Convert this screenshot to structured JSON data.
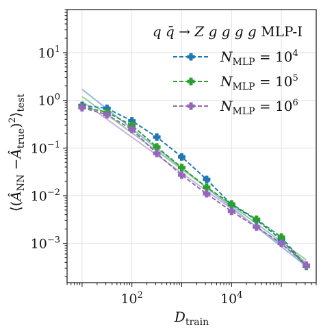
{
  "chart_data": {
    "type": "line",
    "xscale": "log",
    "yscale": "log",
    "xlim": [
      5,
      500000
    ],
    "ylim": [
      0.00015,
      80
    ],
    "grid": true,
    "legend_placement": "top-right",
    "legend_title_prefix": "q q̄ → Z g g g g",
    "legend_title_suffix": "MLP-I",
    "xlabel_main": "D",
    "xlabel_sub": "train",
    "ylabel_text": "⟨(Â_NN − Â_true)²⟩_test",
    "ylabel_parts": {
      "open": "⟨(",
      "a1": "Â",
      "a1_sub": "NN",
      "minus": " −",
      "a2": "Â",
      "a2_sub": "true",
      "close": ")",
      "sq": "2",
      "close2": "⟩",
      "test_sub": "test"
    },
    "x_ticks": [
      {
        "value": 100,
        "base": "10",
        "exp": "2"
      },
      {
        "value": 10000,
        "base": "10",
        "exp": "4"
      }
    ],
    "y_ticks": [
      {
        "value": 10,
        "base": "10",
        "exp": "1"
      },
      {
        "value": 1,
        "base": "10",
        "exp": "0"
      },
      {
        "value": 0.1,
        "base": "10",
        "exp": "−1"
      },
      {
        "value": 0.01,
        "base": "10",
        "exp": "−2"
      },
      {
        "value": 0.001,
        "base": "10",
        "exp": "−3"
      }
    ],
    "x": [
      10,
      31.6,
      100,
      316,
      1000,
      3160,
      10000,
      31600,
      100000,
      316000
    ],
    "series": [
      {
        "legend_prefix": "N",
        "legend_sub": "MLP",
        "legend_mid": " = 10",
        "legend_exp": "4",
        "color": "#1f77b4",
        "values": [
          0.78,
          0.68,
          0.37,
          0.17,
          0.065,
          0.022,
          0.0065,
          0.0031,
          0.0012,
          0.00033
        ],
        "fit": {
          "x": [
            10,
            316000
          ],
          "y": [
            1.7,
            0.00033
          ],
          "color": "#8fbbd9"
        }
      },
      {
        "legend_prefix": "N",
        "legend_sub": "MLP",
        "legend_mid": " = 10",
        "legend_exp": "5",
        "color": "#2ca02c",
        "values": [
          0.74,
          0.56,
          0.3,
          0.105,
          0.039,
          0.015,
          0.0067,
          0.0032,
          0.00135,
          0.00034
        ],
        "fit": {
          "x": [
            10,
            316000
          ],
          "y": [
            1.2,
            0.00045
          ],
          "color": "#96cf96"
        }
      },
      {
        "legend_prefix": "N",
        "legend_sub": "MLP",
        "legend_mid": " = 10",
        "legend_exp": "6",
        "color": "#9467bd",
        "values": [
          0.7,
          0.5,
          0.245,
          0.077,
          0.027,
          0.011,
          0.0047,
          0.0022,
          0.001,
          0.00035
        ],
        "fit": {
          "x": [
            10,
            316000
          ],
          "y": [
            0.95,
            0.0004
          ],
          "color": "#c9b3de"
        }
      }
    ]
  }
}
